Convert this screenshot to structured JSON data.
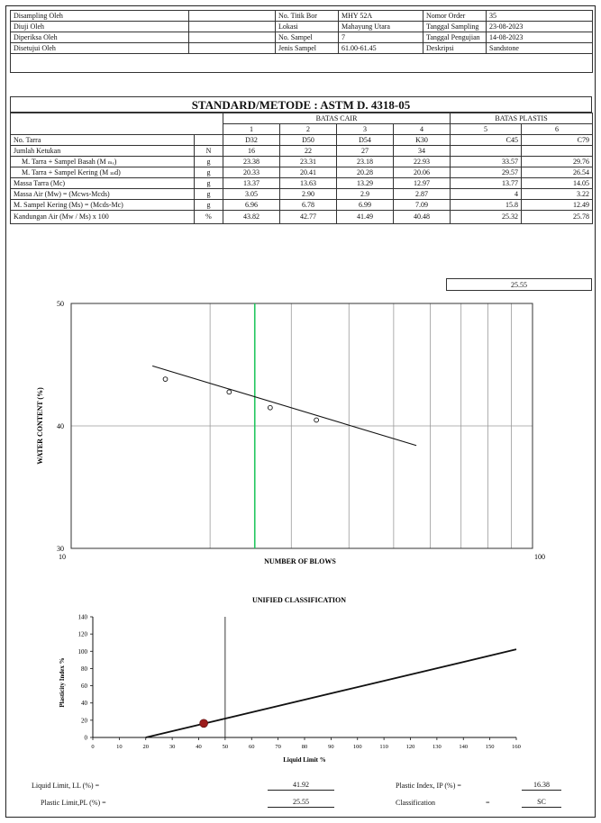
{
  "header": {
    "rows": [
      {
        "left_label": "Disampling Oleh",
        "left_value": "",
        "mid_label": "No. Titik Bor",
        "mid_value": "MHY 52A",
        "right_label": "Nomor Order",
        "right_value": "35"
      },
      {
        "left_label": "Diuji Oleh",
        "left_value": "",
        "mid_label": "Lokasi",
        "mid_value": "Mahayung Utara",
        "right_label": "Tanggal Sampling",
        "right_value": "23-08-2023"
      },
      {
        "left_label": "Diperiksa Oleh",
        "left_value": "",
        "mid_label": "No. Sampel",
        "mid_value": "7",
        "right_label": "Tanggal Pengujian",
        "right_value": "14-08-2023"
      },
      {
        "left_label": "Disetujui Oleh",
        "left_value": "",
        "mid_label": "Jenis Sampel",
        "mid_value": "61.00-61.45",
        "right_label": "Deskripsi",
        "right_value": "Sandstone"
      }
    ]
  },
  "standard_title": "STANDARD/METODE : ASTM D. 4318-05",
  "table": {
    "group_liquid": "BATAS CAIR",
    "group_plastic": "BATAS PLASTIS",
    "col_numbers": [
      "1",
      "2",
      "3",
      "4",
      "5",
      "6"
    ],
    "rows": [
      {
        "label": "No. Tarra",
        "unit": "",
        "values": [
          "D32",
          "D50",
          "D54",
          "K30",
          "C45",
          "C79"
        ]
      },
      {
        "label": "Jumlah Ketukan",
        "unit": "N",
        "values": [
          "16",
          "22",
          "27",
          "34",
          "",
          ""
        ]
      },
      {
        "label": "M. Tarra + Sampel Basah   (M ₘₓ)",
        "unit": "g",
        "values": [
          "23.38",
          "23.31",
          "23.18",
          "22.93",
          "33.57",
          "29.76"
        ]
      },
      {
        "label": "M. Tarra + Sampel Kering   (M ₘd)",
        "unit": "g",
        "values": [
          "20.33",
          "20.41",
          "20.28",
          "20.06",
          "29.57",
          "26.54"
        ]
      },
      {
        "label": "Massa Tarra                  (Mc)",
        "unit": "g",
        "values": [
          "13.37",
          "13.63",
          "13.29",
          "12.97",
          "13.77",
          "14.05"
        ]
      },
      {
        "label": "Massa Air    (Mw) = (Mcws-Mcds)",
        "unit": "g",
        "values": [
          "3.05",
          "2.90",
          "2.9",
          "2.87",
          "4",
          "3.22"
        ]
      },
      {
        "label": "M. Sampel Kering (Ms) = (Mcds-Mc)",
        "unit": "g",
        "values": [
          "6.96",
          "6.78",
          "6.99",
          "7.09",
          "15.8",
          "12.49"
        ]
      },
      {
        "label": "Kandungan Air     (Mw / Ms) x 100",
        "unit": "%",
        "values": [
          "43.82",
          "42.77",
          "41.49",
          "40.48",
          "25.32",
          "25.78"
        ]
      }
    ],
    "plastic_limit_average": "25.55"
  },
  "chart_data": [
    {
      "type": "scatter",
      "xlabel": "NUMBER OF BLOWS",
      "ylabel": "WATER CONTENT (%)",
      "x_scale": "log",
      "xlim": [
        10,
        100
      ],
      "ylim": [
        30,
        50
      ],
      "x_tick_labels": [
        "10",
        "100"
      ],
      "y_tick_labels": [
        "30",
        "40",
        "50"
      ],
      "points": [
        {
          "x": 16,
          "y": 43.82
        },
        {
          "x": 22,
          "y": 42.77
        },
        {
          "x": 27,
          "y": 41.49
        },
        {
          "x": 34,
          "y": 40.48
        }
      ],
      "trend_line": [
        {
          "x": 15,
          "y": 44.9
        },
        {
          "x": 56,
          "y": 38.4
        }
      ],
      "marker_line_x": 25,
      "marker_line_color": "#22c55e"
    },
    {
      "type": "line",
      "title": "UNIFIED CLASSIFICATION",
      "xlabel": "Liquid Limit %",
      "ylabel": "Plasticity Index %",
      "xlim": [
        0,
        160
      ],
      "ylim": [
        0,
        140
      ],
      "x_ticks": [
        0,
        10,
        20,
        30,
        40,
        50,
        60,
        70,
        80,
        90,
        100,
        110,
        120,
        130,
        140,
        150,
        160
      ],
      "y_ticks": [
        0,
        20,
        40,
        60,
        80,
        100,
        120,
        140
      ],
      "a_line": [
        {
          "x": 20,
          "y": 0
        },
        {
          "x": 160,
          "y": 102.2
        }
      ],
      "vertical_line_x": 50,
      "point": {
        "x": 41.92,
        "y": 16.38
      },
      "point_color": "#9b1c1c"
    }
  ],
  "results": {
    "ll_label": "Liquid Limit, LL (%) =",
    "ll_value": "41.92",
    "pl_label": "Plastic Limit,PL (%) =",
    "pl_value": "25.55",
    "pi_label": "Plastic Index, IP (%) =",
    "pi_value": "16.38",
    "class_label": "Classification",
    "class_eq": "=",
    "class_value": "SC"
  }
}
